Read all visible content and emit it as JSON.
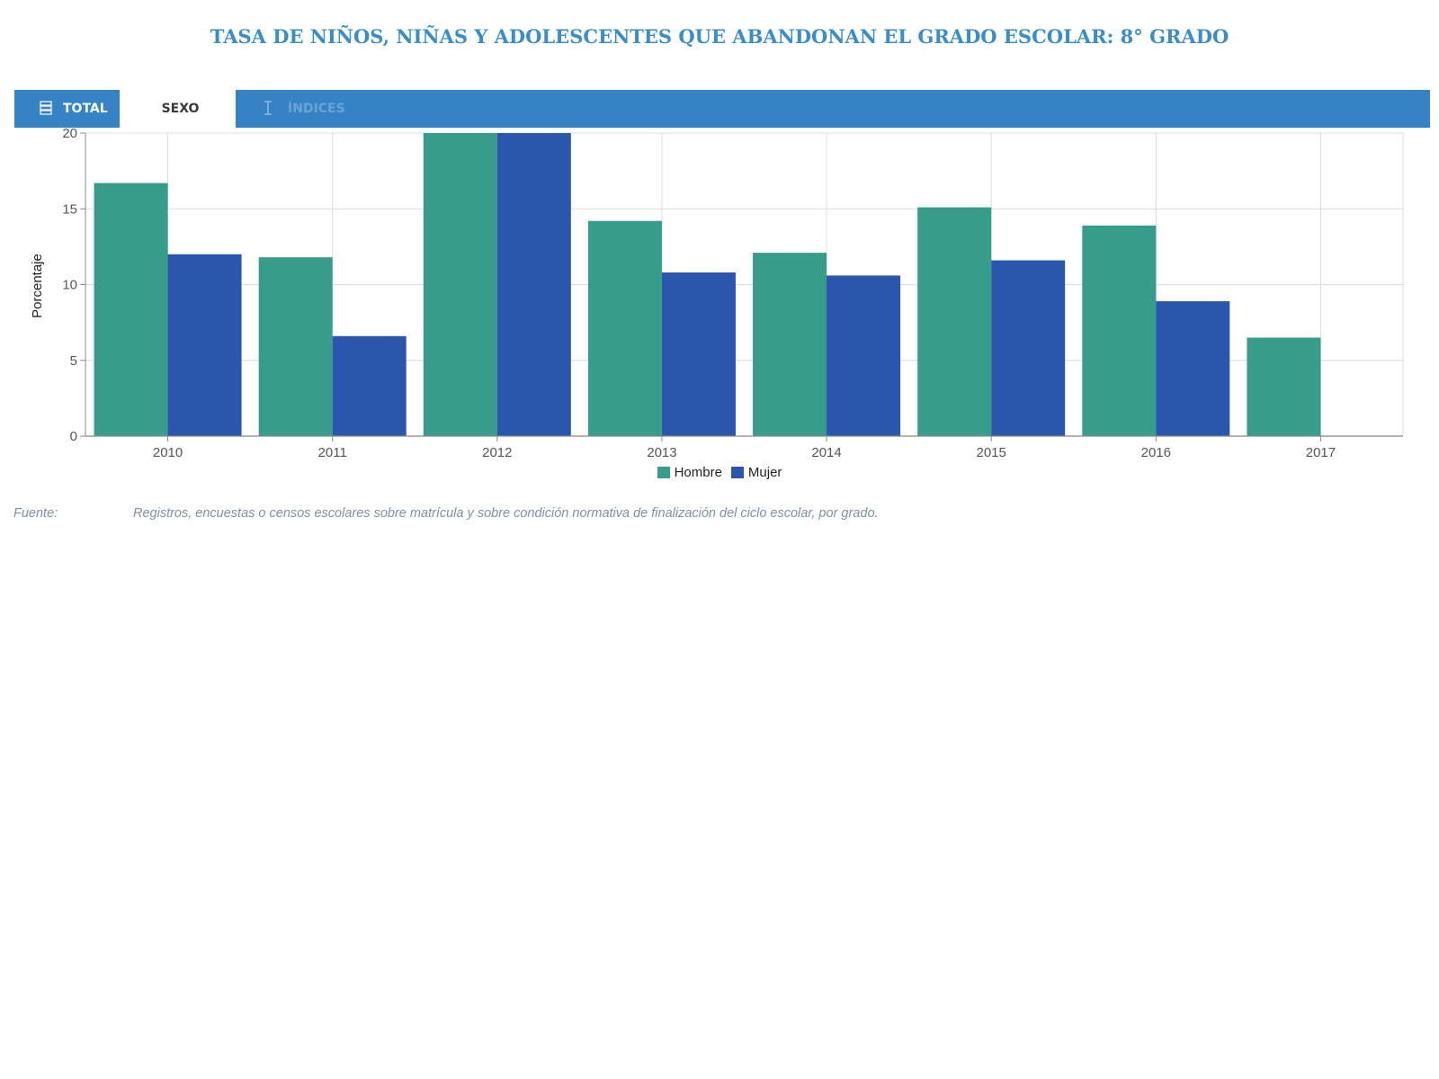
{
  "title": "TASA DE NIÑOS, NIÑAS Y ADOLESCENTES QUE ABANDONAN EL GRADO ESCOLAR: 8° GRADO",
  "tabs": {
    "total": {
      "label": "TOTAL",
      "icon": "list-icon"
    },
    "sexo": {
      "label": "SEXO",
      "selected": true
    },
    "indices": {
      "label": "ÍNDICES",
      "icon": "cursor-icon"
    }
  },
  "colors": {
    "tabbar": "#3583c5",
    "hombre": "#379c8a",
    "mujer": "#2a57ad",
    "title": "#3a8ec8"
  },
  "chart_data": {
    "type": "bar",
    "categories": [
      "2010",
      "2011",
      "2012",
      "2013",
      "2014",
      "2015",
      "2016",
      "2017"
    ],
    "series": [
      {
        "name": "Hombre",
        "values": [
          16.7,
          11.8,
          21.0,
          14.2,
          12.1,
          15.1,
          13.9,
          6.5
        ]
      },
      {
        "name": "Mujer",
        "values": [
          12.0,
          6.6,
          21.0,
          10.8,
          10.6,
          11.6,
          8.9,
          null
        ]
      }
    ],
    "ylabel": "Porcentaje",
    "xlabel": "",
    "ylim": [
      0,
      20
    ],
    "yticks": [
      0,
      5,
      10,
      15,
      20
    ],
    "grid": true,
    "legend": "bottom-center"
  },
  "source": {
    "label": "Fuente:",
    "text": "Registros, encuestas o censos escolares sobre matrícula y sobre condición normativa de finalización del ciclo escolar, por grado."
  }
}
